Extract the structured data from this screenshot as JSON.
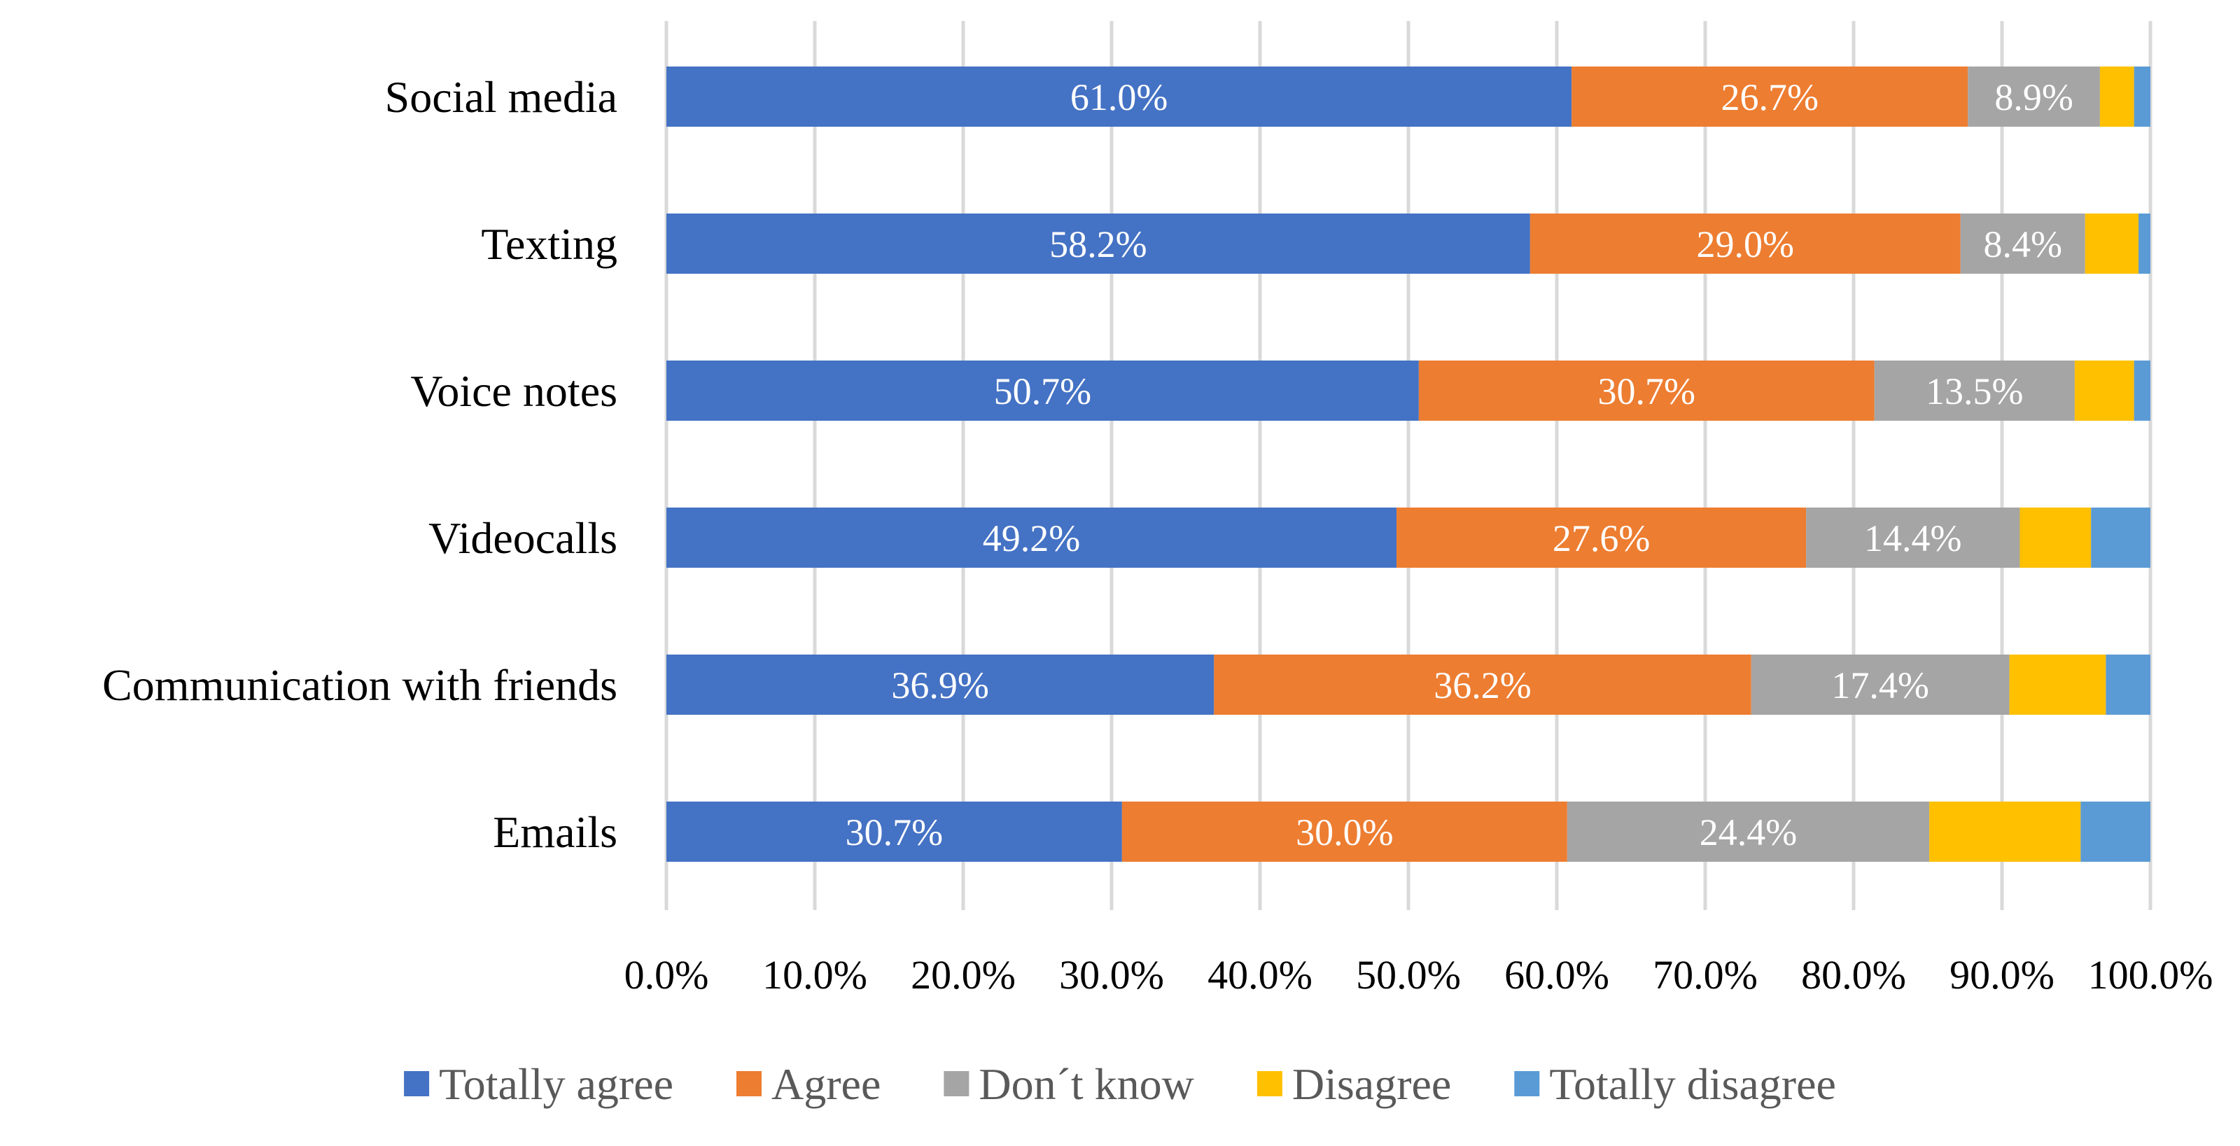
{
  "chart_data": {
    "type": "bar",
    "orientation": "horizontal",
    "stacked": true,
    "title": "",
    "xlabel": "",
    "ylabel": "",
    "xlim": [
      0,
      100
    ],
    "grid": true,
    "legend_position": "bottom",
    "categories": [
      "Social media",
      "Texting",
      "Voice notes",
      "Videocalls",
      "Communication with friends",
      "Emails"
    ],
    "x_ticks": [
      0,
      10,
      20,
      30,
      40,
      50,
      60,
      70,
      80,
      90,
      100
    ],
    "x_tick_labels": [
      "0.0%",
      "10.0%",
      "20.0%",
      "30.0%",
      "40.0%",
      "50.0%",
      "60.0%",
      "70.0%",
      "80.0%",
      "90.0%",
      "100.0%"
    ],
    "series": [
      {
        "name": "Totally agree",
        "color": "#4472c4",
        "values": [
          61.0,
          58.2,
          50.7,
          49.2,
          36.9,
          30.7
        ],
        "labels": [
          "61.0%",
          "58.2%",
          "50.7%",
          "49.2%",
          "36.9%",
          "30.7%"
        ]
      },
      {
        "name": "Agree",
        "color": "#ed7d31",
        "values": [
          26.7,
          29.0,
          30.7,
          27.6,
          36.2,
          30.0
        ],
        "labels": [
          "26.7%",
          "29.0%",
          "30.7%",
          "27.6%",
          "36.2%",
          "30.0%"
        ]
      },
      {
        "name": "Don´t know",
        "color": "#a5a5a5",
        "values": [
          8.9,
          8.4,
          13.5,
          14.4,
          17.4,
          24.4
        ],
        "labels": [
          "8.9%",
          "8.4%",
          "13.5%",
          "14.4%",
          "17.4%",
          "24.4%"
        ]
      },
      {
        "name": "Disagree",
        "color": "#ffc000",
        "values": [
          2.3,
          3.6,
          4.0,
          4.8,
          6.5,
          10.2
        ],
        "labels": [
          "",
          "",
          "",
          "",
          "",
          ""
        ]
      },
      {
        "name": "Totally disagree",
        "color": "#5b9bd5",
        "values": [
          1.1,
          0.8,
          1.1,
          4.0,
          3.0,
          4.7
        ],
        "labels": [
          "",
          "",
          "",
          "",
          "",
          ""
        ]
      }
    ]
  }
}
